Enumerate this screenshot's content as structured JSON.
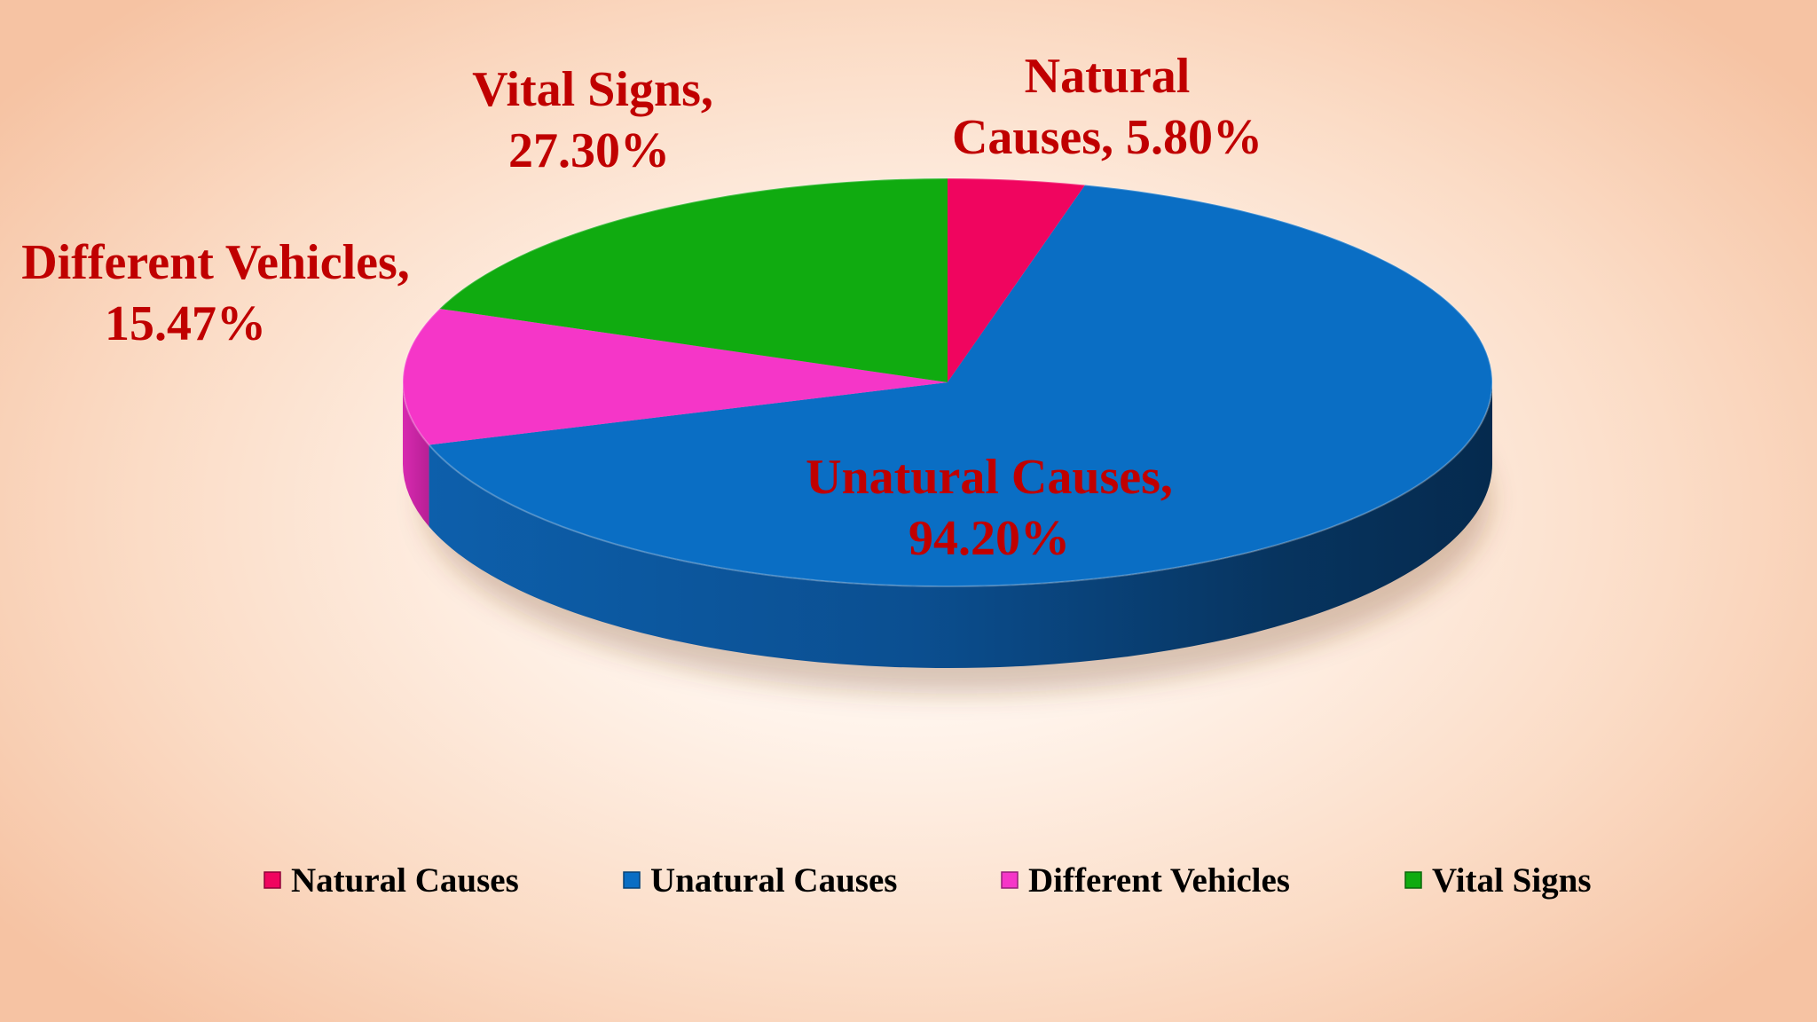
{
  "chart_data": {
    "type": "pie",
    "style": "3d",
    "title": "",
    "legend_position": "bottom",
    "slices": [
      {
        "name": "Natural Causes",
        "value": 5.8,
        "label_line1": "Natural",
        "label_line2": "Causes, 5.80%",
        "color": "#f0055f"
      },
      {
        "name": "Unatural Causes",
        "value": 94.2,
        "label_line1": "Unatural Causes,",
        "label_line2": "94.20%",
        "color": "#0a6ec4"
      },
      {
        "name": "Different Vehicles",
        "value": 15.47,
        "label_line1": "Different Vehicles,",
        "label_line2": "15.47%",
        "color": "#f536c8"
      },
      {
        "name": "Vital Signs",
        "value": 27.3,
        "label_line1": "Vital Signs,",
        "label_line2": "27.30%",
        "color": "#10ab10"
      }
    ],
    "label_color": "#c00000",
    "legend": [
      "Natural Causes",
      "Unatural Causes",
      "Different Vehicles",
      "Vital Signs"
    ]
  }
}
